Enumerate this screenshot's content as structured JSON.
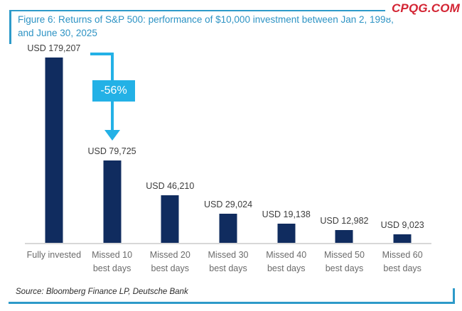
{
  "watermark": "CPQG.COM",
  "figure": {
    "title_line1": "Figure 6: Returns of S&P 500: performance of $10,000 investment between Jan 2, 1998,",
    "title_line2": "and June 30, 2025",
    "source": "Source: Bloomberg Finance LP, Deutsche Bank"
  },
  "annotation": {
    "drop_label": "-56%",
    "from_category": "Fully invested",
    "to_category": "Missed 10 best days"
  },
  "colors": {
    "bar_navy": "#102c5f",
    "accent_cyan": "#23b1e6",
    "rule_teal": "#2d9ac9",
    "title_text": "#2d93c4",
    "watermark_red": "#d32433",
    "axis_line": "#d8d8d8",
    "value_label": "#3d3d3d",
    "category_label": "#6b6b6b"
  },
  "chart_data": {
    "type": "bar",
    "title": "Returns of S&P 500: performance of $10,000 investment between Jan 2, 1998, and June 30, 2025",
    "categories": [
      "Fully invested",
      "Missed 10 best days",
      "Missed 20 best days",
      "Missed 30 best days",
      "Missed 40 best days",
      "Missed 50 best days",
      "Missed 60 best days"
    ],
    "category_lines": [
      [
        "Fully invested"
      ],
      [
        "Missed 10",
        "best days"
      ],
      [
        "Missed 20",
        "best days"
      ],
      [
        "Missed 30",
        "best days"
      ],
      [
        "Missed 40",
        "best days"
      ],
      [
        "Missed 50",
        "best days"
      ],
      [
        "Missed 60",
        "best days"
      ]
    ],
    "values": [
      179207,
      79725,
      46210,
      29024,
      19138,
      12982,
      9023
    ],
    "value_labels": [
      "USD 179,207",
      "USD 79,725",
      "USD 46,210",
      "USD 29,024",
      "USD 19,138",
      "USD 12,982",
      "USD 9,023"
    ],
    "unit": "USD",
    "xlabel": "",
    "ylabel": "",
    "ylim": [
      0,
      190000
    ],
    "grid": false,
    "legend": "none",
    "annotations": [
      {
        "text": "-56%",
        "type": "drop-arrow",
        "from": "Fully invested",
        "to": "Missed 10 best days"
      }
    ]
  }
}
